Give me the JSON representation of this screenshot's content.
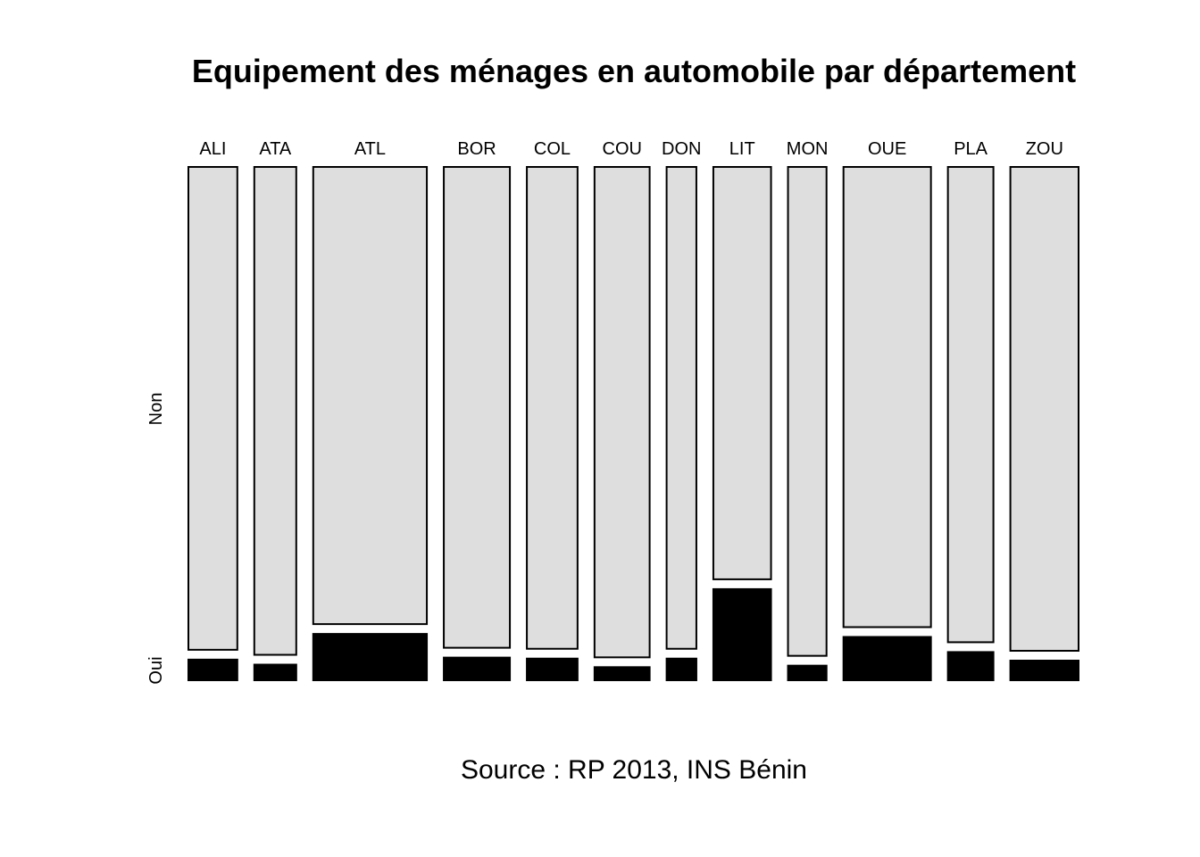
{
  "chart_data": {
    "type": "mosaic",
    "title": "Equipement des ménages en automobile par département",
    "caption": "Source : RP 2013, INS Bénin",
    "row_levels": [
      "Non",
      "Oui"
    ],
    "colors": {
      "Non": "#dedede",
      "Oui": "#000000",
      "border": "#000000"
    },
    "categories": [
      "ALI",
      "ATA",
      "ATL",
      "BOR",
      "COL",
      "COU",
      "DON",
      "LIT",
      "MON",
      "OUE",
      "PLA",
      "ZOU"
    ],
    "column_share": [
      0.0554,
      0.0475,
      0.1286,
      0.0748,
      0.0574,
      0.0624,
      0.0337,
      0.0653,
      0.0436,
      0.099,
      0.0515,
      0.0772
    ],
    "oui_share": [
      0.041,
      0.031,
      0.092,
      0.045,
      0.043,
      0.026,
      0.043,
      0.181,
      0.029,
      0.086,
      0.056,
      0.039
    ]
  }
}
